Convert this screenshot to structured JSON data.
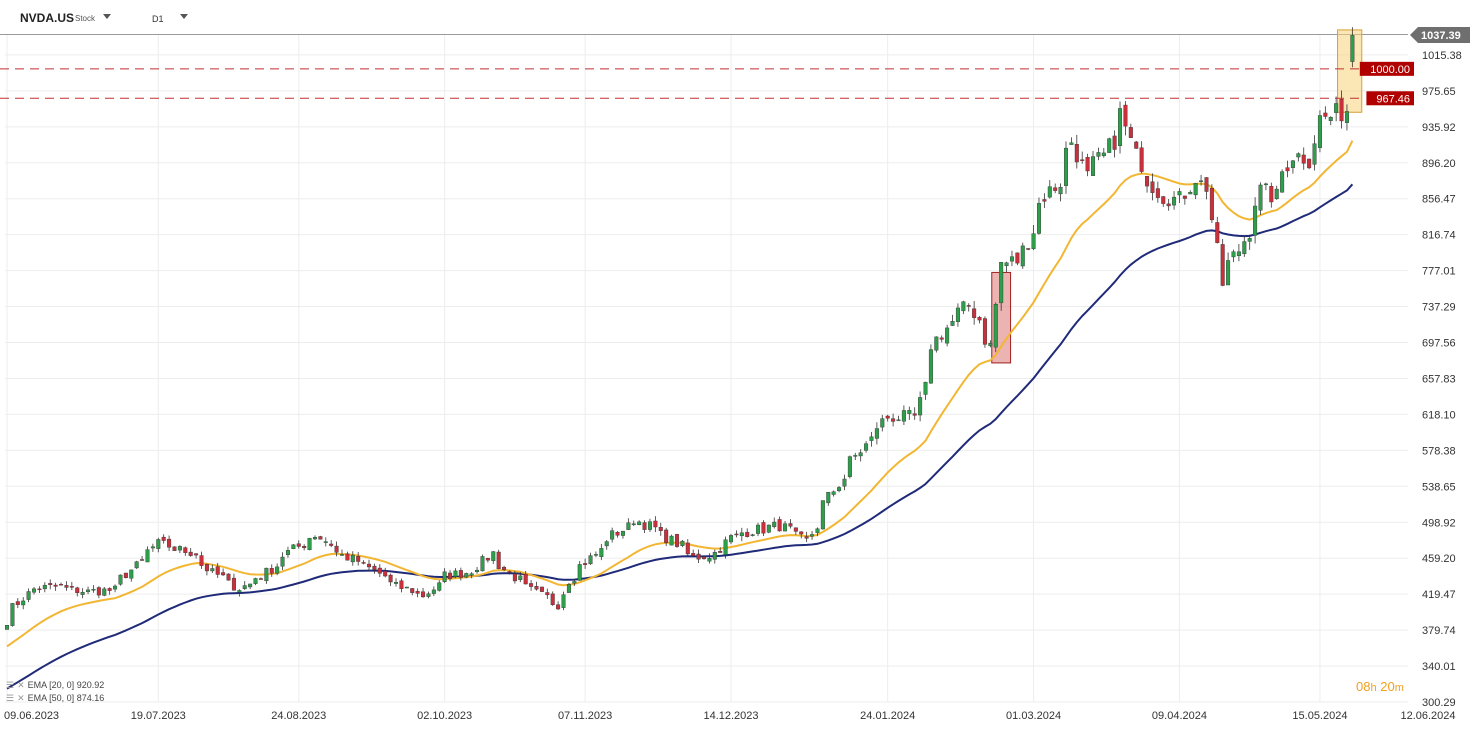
{
  "header": {
    "symbol": "NVDA.US",
    "instrument_type": "Stock",
    "timeframe": "D1"
  },
  "legend": [
    {
      "label": "EMA",
      "params": "[20, 0]",
      "value": "920.92",
      "color": "#f2b632"
    },
    {
      "label": "EMA",
      "params": "[50, 0]",
      "value": "874.16",
      "color": "#1f2a78"
    }
  ],
  "timer": {
    "hours": "08",
    "h_unit": "h",
    "minutes": "20",
    "m_unit": "m"
  },
  "colors": {
    "up": "#2e9e4a",
    "down": "#c8303c",
    "ema20": "#f2b632",
    "ema50": "#1f2a78",
    "hline": "#c03030",
    "last_price_bg": "#6f6f6f",
    "zone_red": "#e08080",
    "zone_yellow": "#f8d27a"
  },
  "chart_data": {
    "type": "candlestick",
    "title": "",
    "xlabel": "",
    "ylabel": "",
    "ylim": [
      300.29,
      1037.39
    ],
    "y_tick_labels": [
      "1015.38",
      "975.65",
      "935.92",
      "896.20",
      "856.47",
      "816.74",
      "777.01",
      "737.29",
      "697.56",
      "657.83",
      "618.10",
      "578.38",
      "538.65",
      "498.92",
      "459.20",
      "419.47",
      "379.74",
      "340.01",
      "300.29"
    ],
    "x_tick_labels": [
      "09.06.2023",
      "19.07.2023",
      "24.08.2023",
      "02.10.2023",
      "07.11.2023",
      "14.12.2023",
      "24.01.2024",
      "01.03.2024",
      "09.04.2024",
      "15.05.2024",
      "12.06.2024"
    ],
    "last_price": "1037.39",
    "horizontal_levels": [
      {
        "value": 1000.0,
        "label": "1000.00"
      },
      {
        "value": 967.46,
        "label": "967.46"
      }
    ],
    "zones": [
      {
        "name": "red-zone",
        "from": "2024-02-21",
        "to": "2024-02-23",
        "low": 675,
        "high": 775
      },
      {
        "name": "yellow-zone",
        "from": "2024-05-21",
        "to": "2024-05-24",
        "low": 952,
        "high": 1043
      }
    ],
    "ema20_end": 920.92,
    "ema50_end": 874.16,
    "anchors": [
      {
        "date": "2023-06-09",
        "price": 390
      },
      {
        "date": "2023-06-16",
        "price": 425
      },
      {
        "date": "2023-06-23",
        "price": 428
      },
      {
        "date": "2023-06-30",
        "price": 422
      },
      {
        "date": "2023-07-07",
        "price": 424
      },
      {
        "date": "2023-07-14",
        "price": 455
      },
      {
        "date": "2023-07-19",
        "price": 475
      },
      {
        "date": "2023-07-28",
        "price": 465
      },
      {
        "date": "2023-08-02",
        "price": 443
      },
      {
        "date": "2023-08-09",
        "price": 426
      },
      {
        "date": "2023-08-15",
        "price": 440
      },
      {
        "date": "2023-08-22",
        "price": 466
      },
      {
        "date": "2023-08-24",
        "price": 472
      },
      {
        "date": "2023-08-29",
        "price": 485
      },
      {
        "date": "2023-09-05",
        "price": 462
      },
      {
        "date": "2023-09-12",
        "price": 448
      },
      {
        "date": "2023-09-19",
        "price": 428
      },
      {
        "date": "2023-09-26",
        "price": 418
      },
      {
        "date": "2023-10-02",
        "price": 440
      },
      {
        "date": "2023-10-09",
        "price": 446
      },
      {
        "date": "2023-10-13",
        "price": 465
      },
      {
        "date": "2023-10-19",
        "price": 438
      },
      {
        "date": "2023-10-26",
        "price": 418
      },
      {
        "date": "2023-10-31",
        "price": 408
      },
      {
        "date": "2023-11-02",
        "price": 435
      },
      {
        "date": "2023-11-07",
        "price": 455
      },
      {
        "date": "2023-11-14",
        "price": 485
      },
      {
        "date": "2023-11-20",
        "price": 502
      },
      {
        "date": "2023-11-28",
        "price": 482
      },
      {
        "date": "2023-12-05",
        "price": 460
      },
      {
        "date": "2023-12-11",
        "price": 465
      },
      {
        "date": "2023-12-14",
        "price": 482
      },
      {
        "date": "2023-12-20",
        "price": 490
      },
      {
        "date": "2023-12-27",
        "price": 495
      },
      {
        "date": "2024-01-03",
        "price": 478
      },
      {
        "date": "2024-01-08",
        "price": 520
      },
      {
        "date": "2024-01-12",
        "price": 548
      },
      {
        "date": "2024-01-19",
        "price": 590
      },
      {
        "date": "2024-01-24",
        "price": 615
      },
      {
        "date": "2024-01-31",
        "price": 615
      },
      {
        "date": "2024-02-05",
        "price": 695
      },
      {
        "date": "2024-02-09",
        "price": 720
      },
      {
        "date": "2024-02-14",
        "price": 738
      },
      {
        "date": "2024-02-20",
        "price": 694
      },
      {
        "date": "2024-02-22",
        "price": 785
      },
      {
        "date": "2024-02-27",
        "price": 788
      },
      {
        "date": "2024-03-01",
        "price": 822
      },
      {
        "date": "2024-03-05",
        "price": 860
      },
      {
        "date": "2024-03-08",
        "price": 875
      },
      {
        "date": "2024-03-12",
        "price": 920
      },
      {
        "date": "2024-03-15",
        "price": 880
      },
      {
        "date": "2024-03-20",
        "price": 903
      },
      {
        "date": "2024-03-25",
        "price": 950
      },
      {
        "date": "2024-03-28",
        "price": 903
      },
      {
        "date": "2024-04-04",
        "price": 860
      },
      {
        "date": "2024-04-09",
        "price": 855
      },
      {
        "date": "2024-04-12",
        "price": 880
      },
      {
        "date": "2024-04-16",
        "price": 870
      },
      {
        "date": "2024-04-19",
        "price": 762
      },
      {
        "date": "2024-04-24",
        "price": 800
      },
      {
        "date": "2024-04-30",
        "price": 865
      },
      {
        "date": "2024-05-03",
        "price": 858
      },
      {
        "date": "2024-05-08",
        "price": 905
      },
      {
        "date": "2024-05-13",
        "price": 900
      },
      {
        "date": "2024-05-15",
        "price": 945
      },
      {
        "date": "2024-05-20",
        "price": 950
      },
      {
        "date": "2024-05-22",
        "price": 955
      },
      {
        "date": "2024-05-23",
        "price": 1037
      }
    ]
  }
}
